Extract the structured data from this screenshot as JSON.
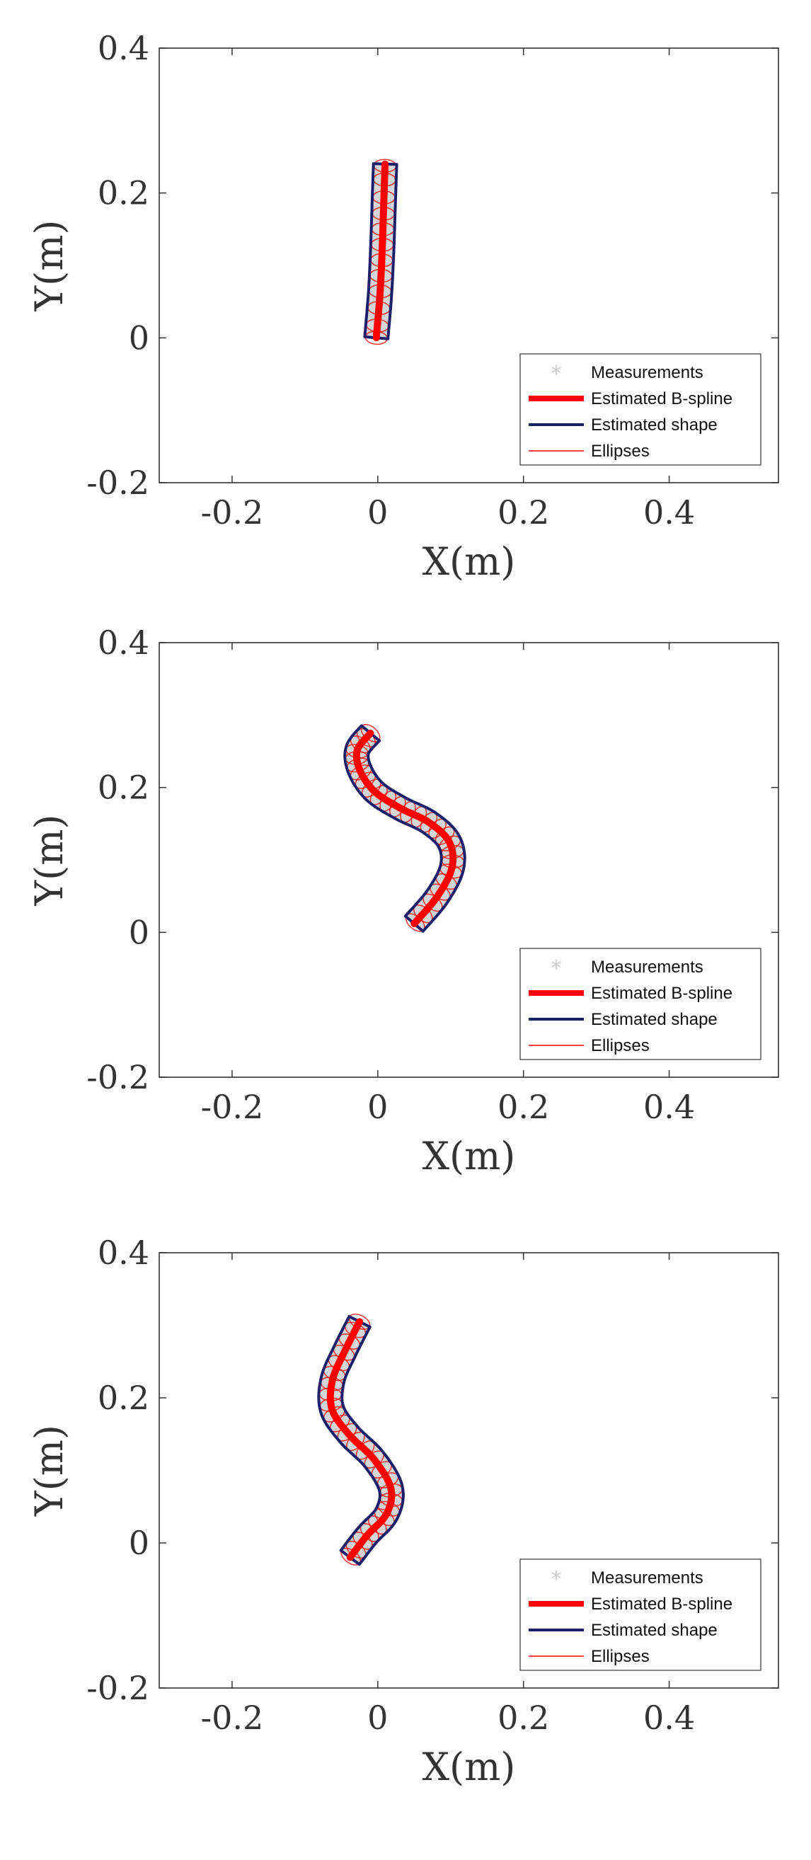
{
  "colors": {
    "measurements": "#c8c8c8",
    "bspline": "#ff0000",
    "shape": "#1a1f6b",
    "ellipses": "#ff0000",
    "axes": "#333333"
  },
  "chart_data": [
    {
      "type": "line",
      "xlabel": "X(m)",
      "ylabel": "Y(m)",
      "xlim": [
        -0.3,
        0.55
      ],
      "ylim": [
        -0.2,
        0.4
      ],
      "xticks": [
        -0.2,
        0,
        0.2,
        0.4
      ],
      "yticks": [
        -0.2,
        0,
        0.2,
        0.4
      ],
      "xtick_labels": [
        "-0.2",
        "0",
        "0.2",
        "0.4"
      ],
      "ytick_labels": [
        "-0.2",
        "0",
        "0.2",
        "0.4"
      ],
      "grid": false,
      "legend_position": "bottom-right",
      "legend": [
        "Measurements",
        "Estimated B-spline",
        "Estimated shape",
        "Ellipses"
      ],
      "shape_width": 0.032,
      "series": [
        {
          "name": "Estimated B-spline",
          "x": [
            -0.002,
            0.003,
            0.006,
            0.008,
            0.01
          ],
          "y": [
            0.0,
            0.06,
            0.12,
            0.18,
            0.24
          ]
        }
      ]
    },
    {
      "type": "line",
      "xlabel": "X(m)",
      "ylabel": "Y(m)",
      "xlim": [
        -0.3,
        0.55
      ],
      "ylim": [
        -0.2,
        0.4
      ],
      "xticks": [
        -0.2,
        0,
        0.2,
        0.4
      ],
      "yticks": [
        -0.2,
        0,
        0.2,
        0.4
      ],
      "xtick_labels": [
        "-0.2",
        "0",
        "0.2",
        "0.4"
      ],
      "ytick_labels": [
        "-0.2",
        "0",
        "0.2",
        "0.4"
      ],
      "grid": false,
      "legend_position": "bottom-right",
      "legend": [
        "Measurements",
        "Estimated B-spline",
        "Estimated shape",
        "Ellipses"
      ],
      "shape_width": 0.032,
      "series": [
        {
          "name": "Estimated B-spline",
          "x": [
            -0.01,
            -0.028,
            -0.025,
            -0.005,
            0.03,
            0.07,
            0.098,
            0.102,
            0.082,
            0.05
          ],
          "y": [
            0.275,
            0.252,
            0.225,
            0.195,
            0.172,
            0.152,
            0.125,
            0.09,
            0.05,
            0.012
          ]
        }
      ]
    },
    {
      "type": "line",
      "xlabel": "X(m)",
      "ylabel": "Y(m)",
      "xlim": [
        -0.3,
        0.55
      ],
      "ylim": [
        -0.2,
        0.4
      ],
      "xticks": [
        -0.2,
        0,
        0.2,
        0.4
      ],
      "yticks": [
        -0.2,
        0,
        0.2,
        0.4
      ],
      "xtick_labels": [
        "-0.2",
        "0",
        "0.2",
        "0.4"
      ],
      "ytick_labels": [
        "-0.2",
        "0",
        "0.2",
        "0.4"
      ],
      "grid": false,
      "legend_position": "bottom-right",
      "legend": [
        "Measurements",
        "Estimated B-spline",
        "Estimated shape",
        "Ellipses"
      ],
      "shape_width": 0.032,
      "series": [
        {
          "name": "Estimated B-spline",
          "x": [
            -0.025,
            -0.045,
            -0.062,
            -0.063,
            -0.04,
            -0.005,
            0.018,
            0.012,
            -0.015,
            -0.038
          ],
          "y": [
            0.305,
            0.265,
            0.225,
            0.185,
            0.15,
            0.115,
            0.075,
            0.04,
            0.01,
            -0.02
          ]
        }
      ]
    }
  ]
}
